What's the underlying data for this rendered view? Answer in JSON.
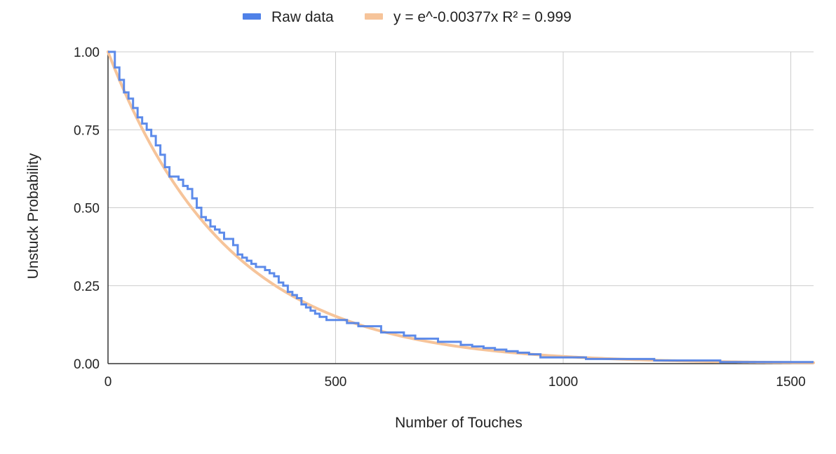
{
  "chart_data": {
    "type": "line",
    "title": "",
    "xlabel": "Number of Touches",
    "ylabel": "Unstuck Probability",
    "xlim": [
      0,
      1550
    ],
    "ylim": [
      0,
      1
    ],
    "x_ticks": [
      0,
      500,
      1000,
      1500
    ],
    "x_tick_labels": [
      "0",
      "500",
      "1000",
      "1500"
    ],
    "y_ticks": [
      0,
      0.25,
      0.5,
      0.75,
      1.0
    ],
    "y_tick_labels": [
      "0.00",
      "0.25",
      "0.50",
      "0.75",
      "1.00"
    ],
    "grid": true,
    "legend_position": "top",
    "series": [
      {
        "name": "Raw data",
        "color": "#4f81e8",
        "step": true,
        "x": [
          0,
          15,
          25,
          35,
          45,
          55,
          65,
          75,
          85,
          95,
          105,
          115,
          125,
          135,
          145,
          155,
          165,
          175,
          185,
          195,
          205,
          215,
          225,
          235,
          245,
          255,
          265,
          275,
          285,
          295,
          305,
          315,
          325,
          335,
          345,
          355,
          365,
          375,
          385,
          395,
          405,
          415,
          425,
          435,
          445,
          455,
          465,
          480,
          500,
          525,
          550,
          575,
          600,
          625,
          650,
          675,
          700,
          725,
          750,
          775,
          800,
          825,
          850,
          875,
          900,
          925,
          950,
          1000,
          1050,
          1100,
          1163,
          1200,
          1250,
          1300,
          1345,
          1400,
          1450,
          1500,
          1550
        ],
        "y": [
          1.0,
          0.95,
          0.91,
          0.87,
          0.85,
          0.82,
          0.79,
          0.77,
          0.75,
          0.73,
          0.7,
          0.67,
          0.63,
          0.6,
          0.6,
          0.59,
          0.57,
          0.56,
          0.53,
          0.5,
          0.47,
          0.46,
          0.44,
          0.43,
          0.42,
          0.4,
          0.4,
          0.38,
          0.35,
          0.34,
          0.33,
          0.32,
          0.31,
          0.31,
          0.3,
          0.29,
          0.28,
          0.26,
          0.25,
          0.23,
          0.22,
          0.21,
          0.19,
          0.18,
          0.17,
          0.16,
          0.15,
          0.14,
          0.14,
          0.13,
          0.12,
          0.12,
          0.1,
          0.1,
          0.09,
          0.08,
          0.08,
          0.07,
          0.07,
          0.06,
          0.055,
          0.05,
          0.045,
          0.04,
          0.035,
          0.03,
          0.02,
          0.02,
          0.015,
          0.015,
          0.015,
          0.01,
          0.01,
          0.01,
          0.005,
          0.005,
          0.005,
          0.005,
          0.005
        ]
      },
      {
        "name": "y = e^-0.00377x R² = 0.999",
        "color": "#f6c49a",
        "function": "exp",
        "coefficient": -0.00377
      }
    ]
  }
}
